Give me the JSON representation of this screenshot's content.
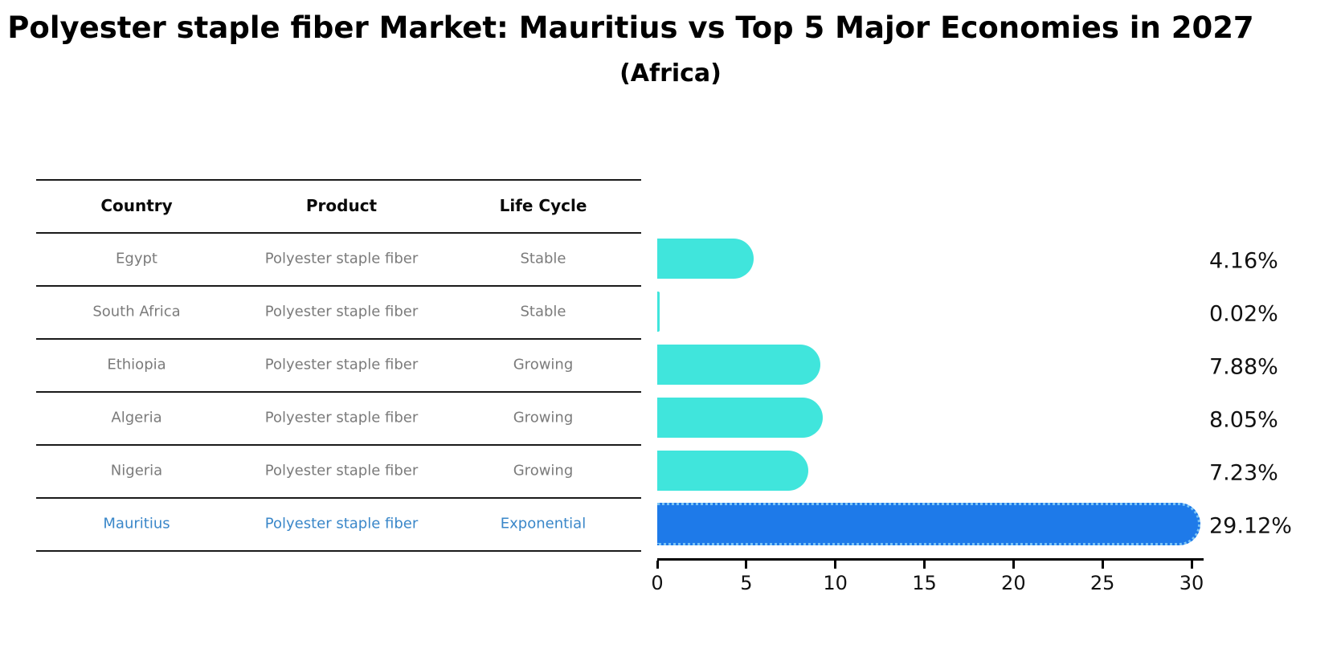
{
  "header": {
    "title": "Polyester staple fiber Market: Mauritius vs Top 5 Major Economies in 2027",
    "subtitle": "(Africa)"
  },
  "table": {
    "columns": [
      "Country",
      "Product",
      "Life Cycle"
    ],
    "rows": [
      {
        "country": "Egypt",
        "product": "Polyester staple fiber",
        "life_cycle": "Stable",
        "highlight": false
      },
      {
        "country": "South Africa",
        "product": "Polyester staple fiber",
        "life_cycle": "Stable",
        "highlight": false
      },
      {
        "country": "Ethiopia",
        "product": "Polyester staple fiber",
        "life_cycle": "Growing",
        "highlight": false
      },
      {
        "country": "Algeria",
        "product": "Polyester staple fiber",
        "life_cycle": "Growing",
        "highlight": false
      },
      {
        "country": "Nigeria",
        "product": "Polyester staple fiber",
        "life_cycle": "Growing",
        "highlight": false
      },
      {
        "country": "Mauritius",
        "product": "Polyester staple fiber",
        "life_cycle": "Exponential",
        "highlight": true
      }
    ]
  },
  "chart_data": {
    "type": "bar",
    "orientation": "horizontal",
    "title": "Polyester staple fiber Market: Mauritius vs Top 5 Major Economies in 2027 (Africa)",
    "categories": [
      "Egypt",
      "South Africa",
      "Ethiopia",
      "Algeria",
      "Nigeria",
      "Mauritius"
    ],
    "values": [
      4.16,
      0.02,
      7.88,
      8.05,
      7.23,
      29.12
    ],
    "value_labels": [
      "4.16%",
      "0.02%",
      "7.88%",
      "8.05%",
      "7.23%",
      "29.12%"
    ],
    "xlabel": "",
    "ylabel": "",
    "xlim": [
      0,
      30
    ],
    "x_ticks": [
      0,
      5,
      10,
      15,
      20,
      25,
      30
    ],
    "x_tick_labels": [
      "0",
      "5",
      "10",
      "15",
      "20",
      "25",
      "30"
    ],
    "grid": false,
    "legend": "none",
    "highlight_index": 5,
    "bar_color": "#40E5DC",
    "highlight_bar_color": "#1E7AE9",
    "highlight_border_color": "#7CC4F5",
    "highlight_text_color": "#3A87C9",
    "row_text_color": "#7b7b7b"
  }
}
